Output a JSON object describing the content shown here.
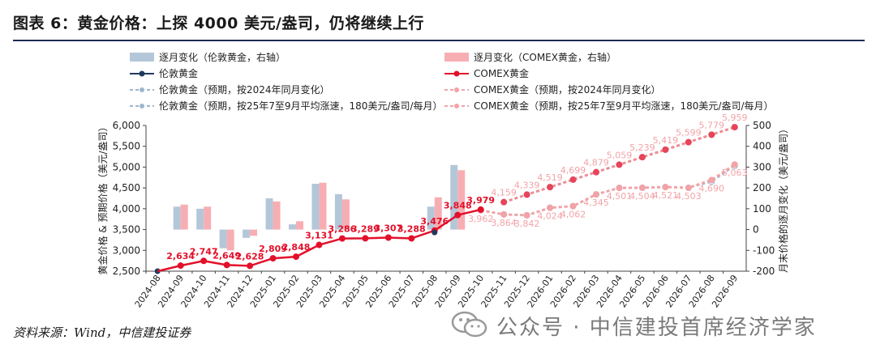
{
  "header": {
    "title": "图表 6：黄金价格：上探 4000 美元/盎司，仍将继续上行"
  },
  "footer": {
    "source": "资料来源：Wind，中信建投证券",
    "watermark": "公众号 · 中信建投首席经济学家"
  },
  "chart_data": {
    "type": "bar+line",
    "categories": [
      "2024-08",
      "2024-09",
      "2024-10",
      "2024-11",
      "2024-12",
      "2025-01",
      "2025-02",
      "2025-03",
      "2025-04",
      "2025-05",
      "2025-06",
      "2025-07",
      "2025-08",
      "2025-09",
      "2025-10",
      "2025-11",
      "2025-12",
      "2026-01",
      "2026-02",
      "2026-03",
      "2026-04",
      "2026-05",
      "2026-06",
      "2026-07",
      "2026-08",
      "2026-09"
    ],
    "y_left": {
      "label": "黄金价格 & 预期价格（美元/盎司）",
      "min": 2500,
      "max": 6000,
      "ticks": [
        "2,500",
        "3,000",
        "3,500",
        "4,000",
        "4,500",
        "5,000",
        "5,500",
        "6,000"
      ]
    },
    "y_right": {
      "label": "月末价格的逐月变化（美元/盎司）",
      "min": -200,
      "max": 500,
      "ticks": [
        "-200",
        "-100",
        "0",
        "100",
        "200",
        "300",
        "400",
        "500"
      ]
    },
    "legend": [
      {
        "label": "逐月变化（伦敦黄金，右轴）",
        "kind": "bar",
        "color": "#b4c7d9"
      },
      {
        "label": "逐月变化（COMEX黄金，右轴）",
        "kind": "bar",
        "color": "#f7aeb3"
      },
      {
        "label": "伦敦黄金",
        "kind": "line",
        "color": "#1f3a5f"
      },
      {
        "label": "COMEX黄金",
        "kind": "line",
        "color": "#e3102a"
      },
      {
        "label": "伦敦黄金（预期，按2024年同月变化）",
        "kind": "dash",
        "color": "#9fb6cc"
      },
      {
        "label": "COMEX黄金（预期，按2024年同月变化）",
        "kind": "dash",
        "color": "#f2a3a8"
      },
      {
        "label": "伦敦黄金（预期，按25年7至9月平均涨速，180美元/盎司/每月）",
        "kind": "dash",
        "color": "#9fb6cc"
      },
      {
        "label": "COMEX黄金（预期，按25年7至9月平均涨速，180美元/盎司/每月）",
        "kind": "dash",
        "color": "#f2a3a8"
      }
    ],
    "series": [
      {
        "name": "逐月变化（伦敦黄金，右轴）",
        "axis": "right",
        "type": "bar",
        "values": [
          null,
          110,
          100,
          -90,
          -40,
          150,
          25,
          220,
          170,
          null,
          null,
          null,
          110,
          310,
          null,
          null,
          null,
          null,
          null,
          null,
          null,
          null,
          null,
          null,
          null,
          null
        ]
      },
      {
        "name": "逐月变化（COMEX黄金，右轴）",
        "axis": "right",
        "type": "bar",
        "values": [
          null,
          120,
          110,
          -100,
          -30,
          135,
          40,
          225,
          145,
          null,
          null,
          null,
          155,
          285,
          null,
          null,
          null,
          null,
          null,
          null,
          null,
          null,
          null,
          null,
          null,
          null
        ]
      },
      {
        "name": "伦敦黄金",
        "axis": "left",
        "type": "line",
        "values": [
          2500,
          null,
          null,
          null,
          null,
          null,
          null,
          null,
          null,
          null,
          null,
          null,
          3430,
          null,
          null,
          null,
          null,
          null,
          null,
          null,
          null,
          null,
          null,
          null,
          null,
          null
        ]
      },
      {
        "name": "COMEX黄金",
        "axis": "left",
        "type": "line",
        "values": [
          null,
          2634,
          2747,
          2649,
          2628,
          2809,
          2848,
          3131,
          3286,
          3289,
          3307,
          3288,
          3476,
          3848,
          3979,
          null,
          null,
          null,
          null,
          null,
          null,
          null,
          null,
          null,
          null,
          null
        ],
        "labels": [
          "",
          "2,634",
          "2,747",
          "2,649",
          "2,628",
          "2,809",
          "2,848",
          "3,131",
          "3,286",
          "3,289",
          "3,307",
          "3,288",
          "3,476",
          "3,848",
          "3,979",
          "",
          "",
          "",
          "",
          "",
          "",
          "",
          "",
          "",
          "",
          ""
        ]
      },
      {
        "name": "COMEX黄金（预期，按2024年同月变化）",
        "axis": "left",
        "type": "dash",
        "values": [
          null,
          null,
          null,
          null,
          null,
          null,
          null,
          null,
          null,
          null,
          null,
          null,
          null,
          null,
          3962,
          3864,
          3842,
          4024,
          4062,
          4345,
          4501,
          4504,
          4521,
          4503,
          4690,
          5063
        ],
        "labels": [
          "",
          "",
          "",
          "",
          "",
          "",
          "",
          "",
          "",
          "",
          "",
          "",
          "",
          "",
          "3,962",
          "3,864",
          "3,842",
          "4,024",
          "4,062",
          "4,345",
          "4,501",
          "4,504",
          "4,521",
          "4,503",
          "4,690",
          "5,063"
        ]
      },
      {
        "name": "COMEX黄金（预期，按25年7至9月平均涨速，180美元/盎司/每月）",
        "axis": "left",
        "type": "dash",
        "values": [
          null,
          null,
          null,
          null,
          null,
          null,
          null,
          null,
          null,
          null,
          null,
          null,
          null,
          null,
          null,
          4159,
          4339,
          4519,
          4699,
          4879,
          5059,
          5239,
          5419,
          5599,
          5779,
          5959
        ],
        "labels": [
          "",
          "",
          "",
          "",
          "",
          "",
          "",
          "",
          "",
          "",
          "",
          "",
          "",
          "",
          "",
          "4,159",
          "4,339",
          "4,519",
          "4,699",
          "4,879",
          "5,059",
          "5,239",
          "5,419",
          "5,599",
          "5,779",
          "5,959"
        ]
      },
      {
        "name": "伦敦黄金（预期，按2024年同月变化）",
        "axis": "left",
        "type": "dash",
        "values": [
          null,
          null,
          null,
          null,
          null,
          null,
          null,
          null,
          null,
          null,
          null,
          null,
          null,
          null,
          3962,
          3864,
          3842,
          4024,
          4062,
          4345,
          4501,
          4504,
          4521,
          4503,
          4650,
          5030
        ]
      },
      {
        "name": "伦敦黄金（预期，按25年7至9月平均涨速，180美元/盎司/每月）",
        "axis": "left",
        "type": "dash",
        "values": [
          null,
          null,
          null,
          null,
          null,
          null,
          null,
          null,
          null,
          null,
          null,
          null,
          null,
          null,
          null,
          4159,
          4339,
          4519,
          4699,
          4879,
          5059,
          5239,
          5419,
          5599,
          5779,
          5959
        ]
      }
    ]
  }
}
